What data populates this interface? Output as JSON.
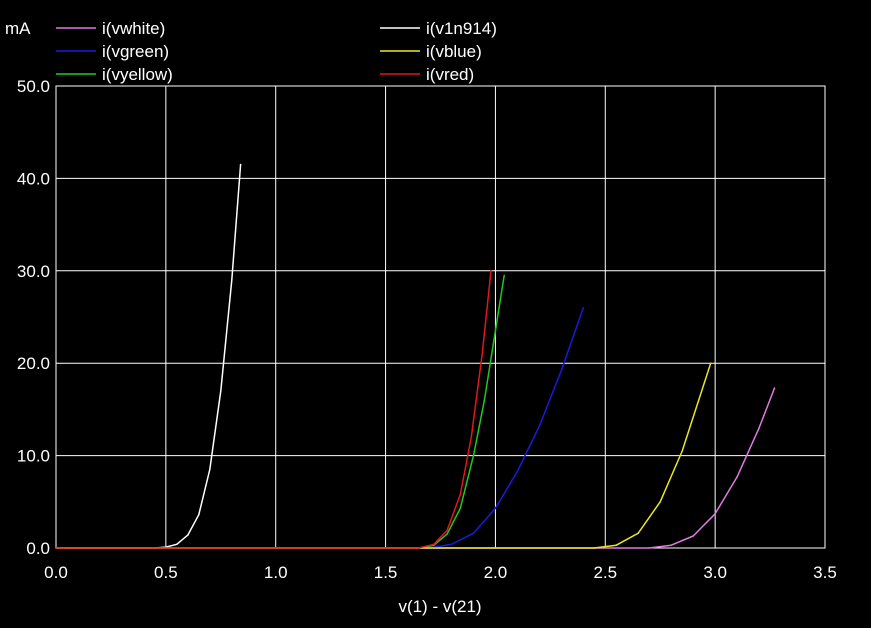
{
  "chart_data": {
    "type": "line",
    "ylabel": "mA",
    "xlabel": "v(1) - v(21)",
    "xlim": [
      0.0,
      3.5
    ],
    "ylim": [
      0.0,
      50.0
    ],
    "x_ticks": [
      "0.0",
      "0.5",
      "1.0",
      "1.5",
      "2.0",
      "2.5",
      "3.0",
      "3.5"
    ],
    "y_ticks": [
      "0.0",
      "10.0",
      "20.0",
      "30.0",
      "40.0",
      "50.0"
    ],
    "grid": true,
    "legend_position": "top",
    "series": [
      {
        "name": "i(vwhite)",
        "color": "#e07ae0",
        "legend_column": 0,
        "x": [
          2.7,
          2.8,
          2.9,
          3.0,
          3.1,
          3.2,
          3.27
        ],
        "y": [
          0.0,
          0.3,
          1.3,
          3.7,
          7.7,
          13.0,
          17.3
        ]
      },
      {
        "name": "i(vgreen)",
        "color": "#1a1adc",
        "legend_column": 0,
        "x": [
          1.7,
          1.8,
          1.9,
          2.0,
          2.1,
          2.2,
          2.3,
          2.4
        ],
        "y": [
          0.0,
          0.4,
          1.6,
          4.3,
          8.3,
          13.2,
          19.2,
          26.0
        ]
      },
      {
        "name": "i(vyellow)",
        "color": "#22c822",
        "legend_column": 0,
        "x": [
          1.65,
          1.72,
          1.78,
          1.84,
          1.9,
          1.95,
          2.0,
          2.04
        ],
        "y": [
          0.0,
          0.3,
          1.5,
          4.3,
          10.0,
          16.0,
          23.5,
          29.5
        ]
      },
      {
        "name": "i(v1n914)",
        "color": "#ffffff",
        "legend_column": 1,
        "x": [
          0.45,
          0.5,
          0.55,
          0.6,
          0.65,
          0.7,
          0.75,
          0.8,
          0.84
        ],
        "y": [
          0.0,
          0.1,
          0.4,
          1.4,
          3.6,
          8.5,
          17.0,
          29.0,
          41.5
        ]
      },
      {
        "name": "i(vblue)",
        "color": "#e8e820",
        "legend_column": 1,
        "x": [
          2.45,
          2.55,
          2.65,
          2.75,
          2.85,
          2.98
        ],
        "y": [
          0.0,
          0.3,
          1.6,
          5.0,
          10.5,
          20.0
        ]
      },
      {
        "name": "i(vred)",
        "color": "#e01818",
        "legend_column": 1,
        "x": [
          1.65,
          1.72,
          1.78,
          1.84,
          1.89,
          1.94,
          1.98
        ],
        "y": [
          0.0,
          0.4,
          1.9,
          5.8,
          12.0,
          21.0,
          30.0
        ]
      }
    ]
  }
}
